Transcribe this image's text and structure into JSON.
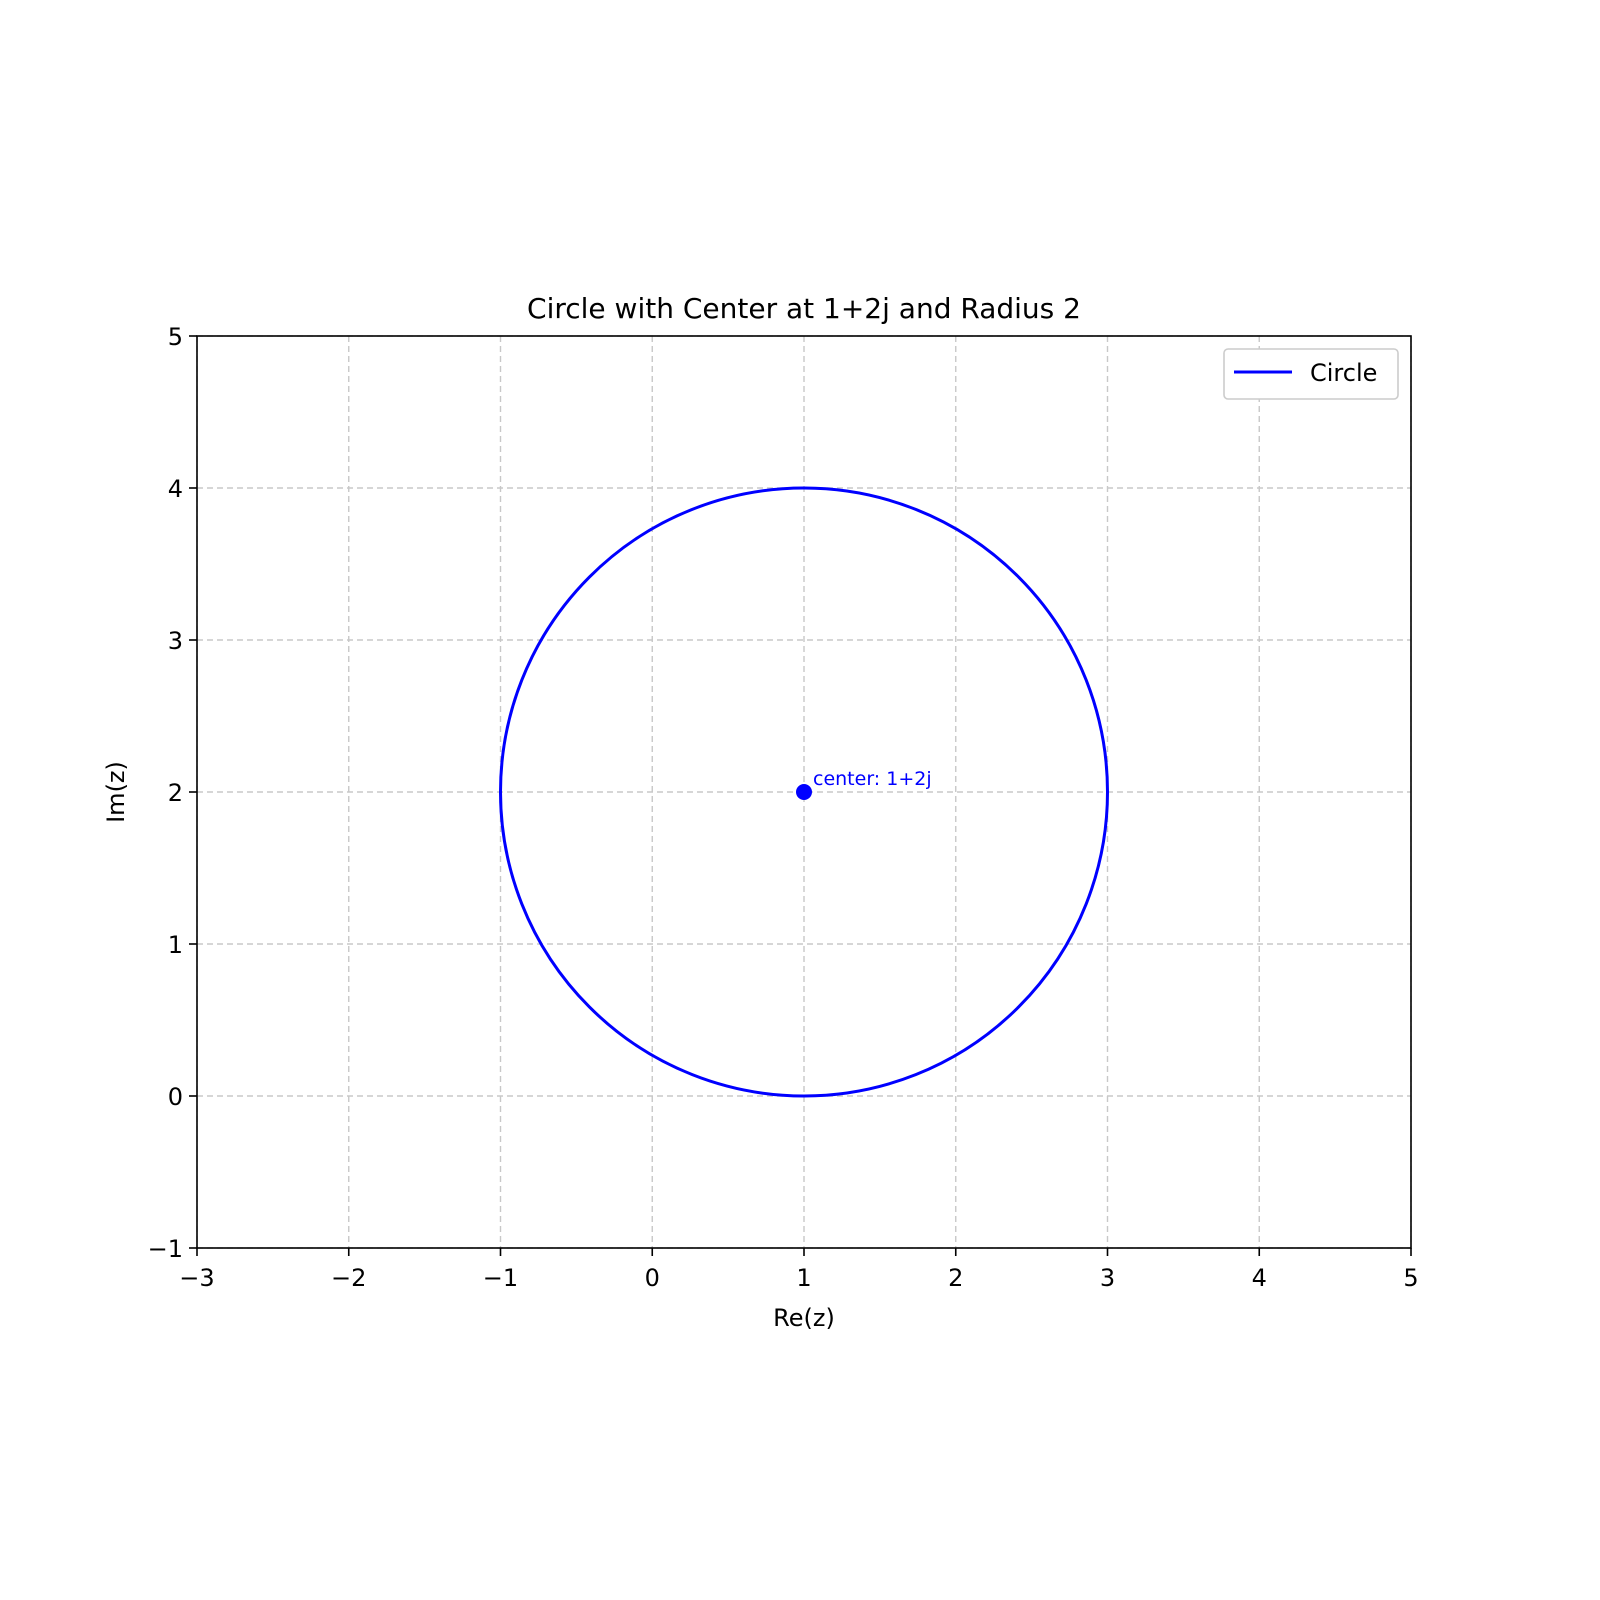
{
  "chart_data": {
    "type": "line",
    "title": "Circle with Center at 1+2j and Radius 2",
    "xlabel": "Re(z)",
    "ylabel": "Im(z)",
    "xlim": [
      -3,
      5
    ],
    "ylim": [
      -1,
      5
    ],
    "xticks": [
      -3,
      -2,
      -1,
      0,
      1,
      2,
      3,
      4,
      5
    ],
    "yticks": [
      -1,
      0,
      1,
      2,
      3,
      4,
      5
    ],
    "xtick_labels": [
      "−3",
      "−2",
      "−1",
      "0",
      "1",
      "2",
      "3",
      "4",
      "5"
    ],
    "ytick_labels": [
      "−1",
      "0",
      "1",
      "2",
      "3",
      "4",
      "5"
    ],
    "grid": true,
    "grid_style": "dashed",
    "legend_position": "upper right",
    "series": [
      {
        "name": "Circle",
        "kind": "circle",
        "center": [
          1,
          2
        ],
        "radius": 2,
        "color": "#0000ff"
      }
    ],
    "points": [
      {
        "x": 1,
        "y": 2,
        "color": "#0000ff",
        "annotation": "center: 1+2j"
      }
    ]
  }
}
